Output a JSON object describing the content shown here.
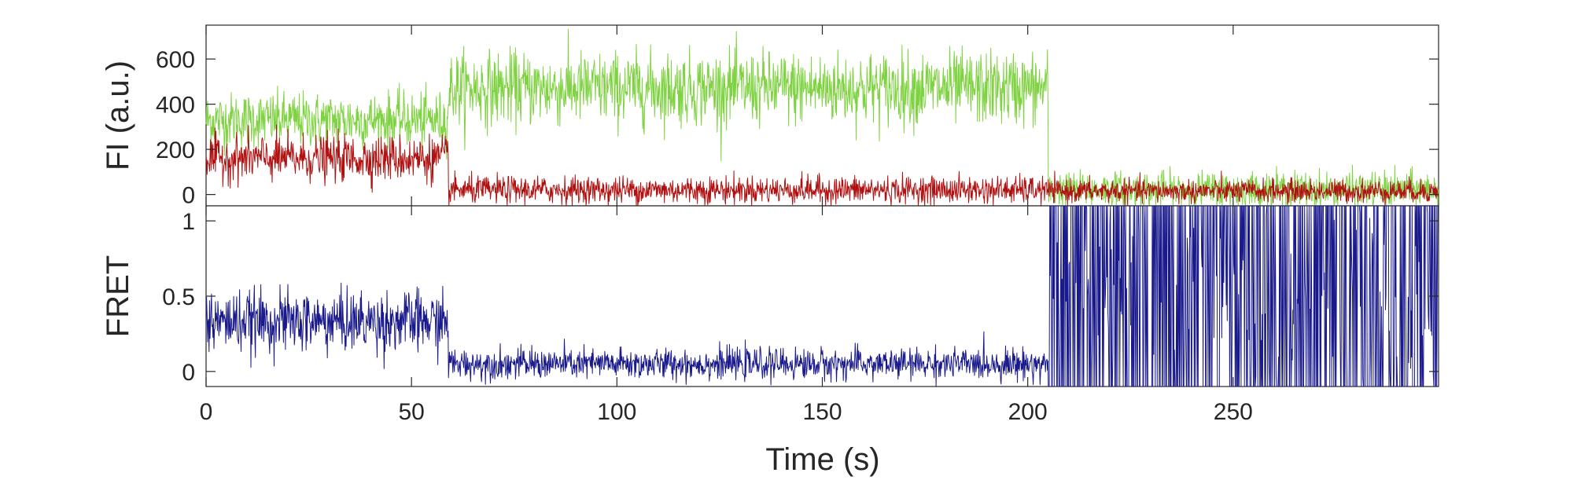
{
  "chart_data": [
    {
      "type": "line",
      "ylabel": "FI (a.u.)",
      "xlim": [
        0,
        300
      ],
      "ylim": [
        -50,
        750
      ],
      "yticks": [
        0,
        200,
        400,
        600
      ],
      "ytick_labels": [
        "0",
        "200",
        "400",
        "600"
      ],
      "grid": false,
      "series": [
        {
          "color": "#7fd241",
          "segments": [
            {
              "x_start": 0,
              "x_end": 59,
              "mean": 330,
              "noise": 60
            },
            {
              "x_start": 59,
              "x_end": 205,
              "mean": 470,
              "noise": 80
            },
            {
              "x_start": 205,
              "x_end": 300,
              "mean": 20,
              "noise": 40
            }
          ]
        },
        {
          "color": "#b01010",
          "segments": [
            {
              "x_start": 0,
              "x_end": 59,
              "mean": 160,
              "noise": 50
            },
            {
              "x_start": 59,
              "x_end": 205,
              "mean": 20,
              "noise": 30
            },
            {
              "x_start": 205,
              "x_end": 300,
              "mean": 15,
              "noise": 25
            }
          ]
        }
      ]
    },
    {
      "type": "line",
      "ylabel": "FRET",
      "xlabel": "Time (s)",
      "xlim": [
        0,
        300
      ],
      "ylim": [
        -0.1,
        1.1
      ],
      "xticks": [
        0,
        50,
        100,
        150,
        200,
        250
      ],
      "xtick_labels": [
        "0",
        "50",
        "100",
        "150",
        "200",
        "250"
      ],
      "yticks": [
        0,
        0.5,
        1
      ],
      "ytick_labels": [
        "0",
        "0.5",
        "1"
      ],
      "grid": false,
      "series": [
        {
          "color": "#1a1a8c",
          "segments": [
            {
              "x_start": 0,
              "x_end": 59,
              "mean": 0.33,
              "noise": 0.1
            },
            {
              "x_start": 59,
              "x_end": 205,
              "mean": 0.05,
              "noise": 0.05
            },
            {
              "x_start": 205,
              "x_end": 300,
              "mean": 0.5,
              "noise": 0.6
            }
          ]
        }
      ]
    }
  ]
}
